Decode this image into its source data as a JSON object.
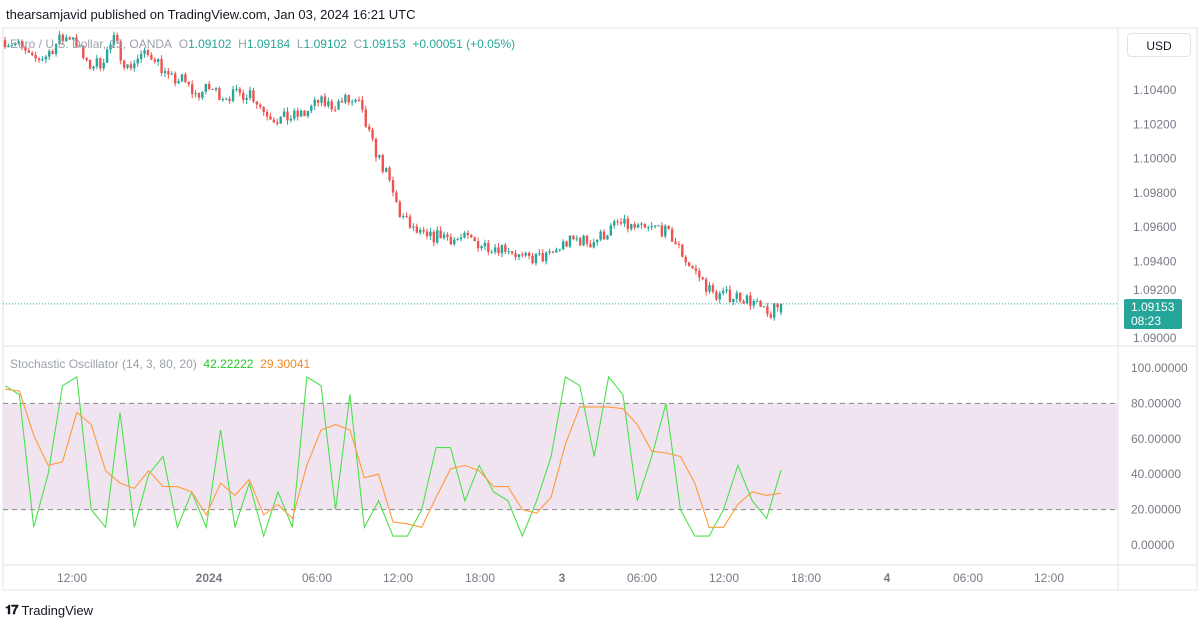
{
  "header": {
    "published": "thearsamjavid published on TradingView.com, Jan 03, 2024 16:21 UTC"
  },
  "legend": {
    "symbol": "Euro / U.S. Dollar, 15, OANDA",
    "o_label": "O",
    "o": "1.09102",
    "h_label": "H",
    "h": "1.09184",
    "l_label": "L",
    "l": "1.09102",
    "c_label": "C",
    "c": "1.09153",
    "change": "+0.00051 (+0.05%)"
  },
  "currency_button": "USD",
  "price_tag": {
    "price": "1.09153",
    "countdown": "08:23"
  },
  "stoch_legend": {
    "name": "Stochastic Oscillator (14, 3, 80, 20)",
    "k": "42.22222",
    "d": "29.30041"
  },
  "footer": {
    "brand": "TradingView"
  },
  "colors": {
    "up": "#26a69a",
    "down": "#ef5350",
    "k_line": "#4ce04c",
    "d_line": "#ff9a3c",
    "band": "#f1e4f1"
  },
  "chart_data": [
    {
      "type": "candlestick",
      "interval": "15",
      "ylim": [
        1.0895,
        1.1075
      ],
      "price_ticks": [
        "1.10400",
        "1.10200",
        "1.10000",
        "1.09800",
        "1.09600",
        "1.09400",
        "1.09200",
        "1.09000"
      ],
      "hourly_closes": [
        1.1069,
        1.1066,
        1.1057,
        1.106,
        1.1069,
        1.1072,
        1.1054,
        1.1056,
        1.1069,
        1.1053,
        1.106,
        1.106,
        1.1046,
        1.1046,
        1.1037,
        1.1041,
        1.1037,
        1.1037,
        1.1039,
        1.1028,
        1.1023,
        1.1024,
        1.1026,
        1.1033,
        1.1031,
        1.1034,
        1.1031,
        1.1008,
        1.0991,
        1.0968,
        1.0958,
        1.0953,
        1.0956,
        1.0953,
        1.0953,
        1.095,
        1.0949,
        1.0948,
        1.0941,
        1.0942,
        1.0943,
        1.095,
        1.0953,
        1.0951,
        1.0956,
        1.0962,
        1.096,
        1.0958,
        1.096,
        1.0954,
        1.0941,
        1.0931,
        1.0921,
        1.092,
        1.092,
        1.0916,
        1.0908,
        1.09153
      ],
      "last_price": 1.09153
    },
    {
      "type": "line",
      "title": "Stochastic Oscillator (14, 3, 80, 20)",
      "ylim": [
        0,
        100
      ],
      "bands": [
        20,
        80
      ],
      "y_ticks": [
        "100.00000",
        "80.00000",
        "60.00000",
        "40.00000",
        "20.00000",
        "0.00000"
      ],
      "series": [
        {
          "name": "%K",
          "values": [
            90,
            85,
            10,
            40,
            90,
            95,
            20,
            10,
            75,
            10,
            40,
            50,
            10,
            30,
            10,
            65,
            10,
            35,
            5,
            30,
            10,
            95,
            90,
            20,
            85,
            10,
            25,
            5,
            5,
            20,
            55,
            55,
            25,
            45,
            30,
            25,
            5,
            25,
            50,
            95,
            90,
            50,
            95,
            85,
            25,
            50,
            80,
            20,
            5,
            5,
            20,
            45,
            25,
            15,
            42.22
          ]
        },
        {
          "name": "%D",
          "values": [
            88,
            87,
            62,
            45,
            47,
            75,
            68,
            42,
            35,
            32,
            42,
            33,
            33,
            30,
            17,
            35,
            28,
            37,
            17,
            23,
            15,
            45,
            65,
            68,
            65,
            38,
            40,
            13,
            12,
            10,
            27,
            43,
            45,
            42,
            33,
            33,
            20,
            18,
            27,
            57,
            78,
            78,
            78,
            77,
            68,
            53,
            52,
            50,
            35,
            10,
            10,
            23,
            30,
            28,
            29.3
          ]
        }
      ]
    }
  ],
  "time_axis": [
    "12:00",
    "2024",
    "06:00",
    "12:00",
    "18:00",
    "3",
    "06:00",
    "12:00",
    "18:00",
    "4",
    "06:00",
    "12:00"
  ]
}
